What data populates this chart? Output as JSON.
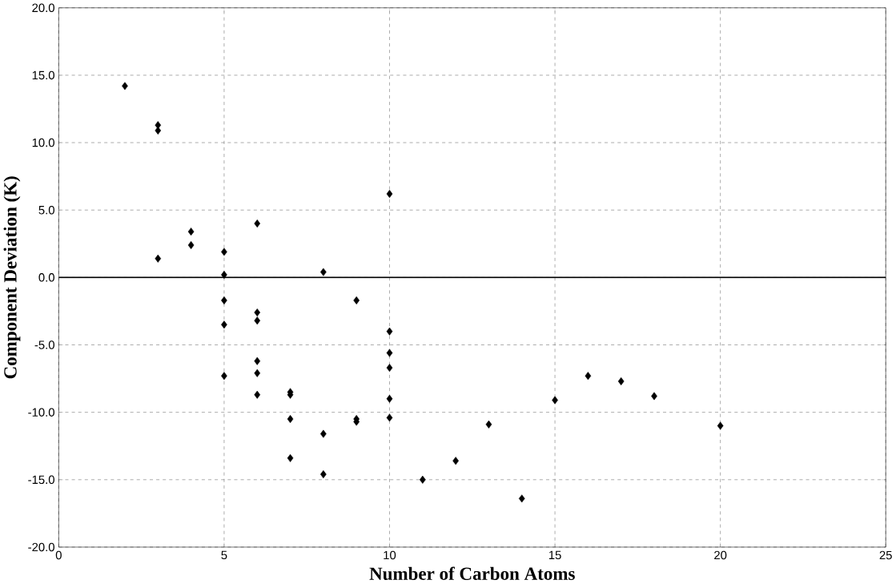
{
  "chart_data": {
    "type": "scatter",
    "xlabel": "Number of Carbon Atoms",
    "ylabel": "Component Deviation (K)",
    "x": [
      2,
      3,
      3,
      3,
      4,
      4,
      5,
      5,
      5,
      5,
      5,
      6,
      6,
      6,
      6,
      6,
      6,
      7,
      7,
      7,
      7,
      8,
      8,
      8,
      9,
      9,
      9,
      10,
      10,
      10,
      10,
      10,
      10,
      11,
      12,
      13,
      14,
      15,
      16,
      17,
      18,
      20
    ],
    "series": [
      {
        "color": "#000000",
        "values": [
          14.2,
          11.3,
          10.9,
          1.4,
          3.4,
          2.4,
          1.9,
          0.2,
          -1.7,
          -3.5,
          -7.3,
          4.0,
          -2.6,
          -3.2,
          -6.2,
          -7.1,
          -8.7,
          -8.5,
          -8.7,
          -10.5,
          -13.4,
          0.4,
          -11.6,
          -14.6,
          -1.7,
          -10.5,
          -10.7,
          6.2,
          -4.0,
          -5.6,
          -6.7,
          -9.0,
          -10.4,
          -15.0,
          -13.6,
          -10.9,
          -16.4,
          -9.1,
          -7.3,
          -7.7,
          -8.8,
          -11.0
        ]
      }
    ],
    "xlim": [
      0,
      25
    ],
    "xticks": [
      0,
      5,
      10,
      15,
      20,
      25
    ],
    "ylim": [
      -20,
      20
    ],
    "yticks": [
      {
        "value": -20,
        "label": "-20.0"
      },
      {
        "value": -15,
        "label": "-15.0"
      },
      {
        "value": -10,
        "label": "-10.0"
      },
      {
        "value": -5,
        "label": "-5.0"
      },
      {
        "value": 0,
        "label": "0.0"
      },
      {
        "value": 5,
        "label": "5.0"
      },
      {
        "value": 10,
        "label": "10.0"
      },
      {
        "value": 15,
        "label": "15.0"
      },
      {
        "value": 20,
        "label": "20.0"
      }
    ],
    "ref_lines": [
      {
        "axis": "y",
        "value": 0,
        "color": "#000000",
        "line_style": "solid"
      }
    ],
    "grid": true,
    "marker": "diamond"
  }
}
